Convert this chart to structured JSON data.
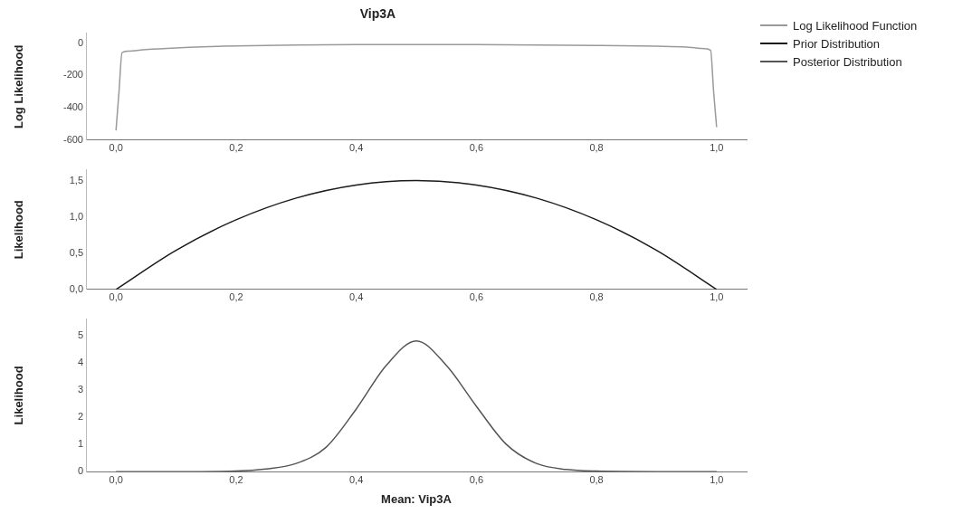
{
  "chart_data": [
    {
      "type": "line",
      "title": "Vip3A",
      "ylabel": "Log Likelihood",
      "legend": "top right",
      "grid": false,
      "x": [
        0,
        0.005,
        0.01,
        0.02,
        0.05,
        0.1,
        0.2,
        0.3,
        0.4,
        0.5,
        0.6,
        0.7,
        0.8,
        0.9,
        0.95,
        0.98,
        0.99,
        0.995,
        1.0
      ],
      "xlim": [
        -0.05,
        1.05
      ],
      "xticks": [
        {
          "value": 0,
          "label": "0,0"
        },
        {
          "value": 0.2,
          "label": "0,2"
        },
        {
          "value": 0.4,
          "label": "0,4"
        },
        {
          "value": 0.6,
          "label": "0,6"
        },
        {
          "value": 0.8,
          "label": "0,8"
        },
        {
          "value": 1,
          "label": "1,0"
        }
      ],
      "ylim": [
        -600,
        60
      ],
      "yticks": [
        -600,
        -400,
        -200,
        0
      ],
      "series": [
        {
          "name": "Log Likelihood Function",
          "color": "#9a9a9a",
          "values": [
            -540,
            -300,
            -60,
            -50,
            -40,
            -30,
            -18,
            -13,
            -10,
            -9,
            -10,
            -12,
            -15,
            -20,
            -25,
            -35,
            -45,
            -300,
            -520
          ]
        }
      ]
    },
    {
      "type": "line",
      "ylabel": "Likelihood",
      "grid": false,
      "x": [
        0,
        0.1,
        0.2,
        0.3,
        0.4,
        0.5,
        0.6,
        0.7,
        0.8,
        0.9,
        1.0
      ],
      "xlim": [
        -0.05,
        1.05
      ],
      "xticks": [
        {
          "value": 0,
          "label": "0,0"
        },
        {
          "value": 0.2,
          "label": "0,2"
        },
        {
          "value": 0.4,
          "label": "0,4"
        },
        {
          "value": 0.6,
          "label": "0,6"
        },
        {
          "value": 0.8,
          "label": "0,8"
        },
        {
          "value": 1,
          "label": "1,0"
        }
      ],
      "ylim": [
        0,
        1.65
      ],
      "yticks": [
        {
          "value": 0,
          "label": "0,0"
        },
        {
          "value": 0.5,
          "label": "0,5"
        },
        {
          "value": 1,
          "label": "1,0"
        },
        {
          "value": 1.5,
          "label": "1,5"
        }
      ],
      "series": [
        {
          "name": "Prior Distribution",
          "color": "#1a1a1a",
          "values": [
            0,
            0.54,
            0.96,
            1.26,
            1.44,
            1.5,
            1.44,
            1.26,
            0.96,
            0.54,
            0
          ]
        }
      ]
    },
    {
      "type": "line",
      "ylabel": "Likelihood",
      "xlabel": "Mean: Vip3A",
      "grid": false,
      "x": [
        0,
        0.1,
        0.2,
        0.25,
        0.3,
        0.35,
        0.4,
        0.45,
        0.5,
        0.55,
        0.6,
        0.65,
        0.7,
        0.75,
        0.8,
        0.9,
        1.0
      ],
      "xlim": [
        -0.05,
        1.05
      ],
      "xticks": [
        {
          "value": 0,
          "label": "0,0"
        },
        {
          "value": 0.2,
          "label": "0,2"
        },
        {
          "value": 0.4,
          "label": "0,4"
        },
        {
          "value": 0.6,
          "label": "0,6"
        },
        {
          "value": 0.8,
          "label": "0,8"
        },
        {
          "value": 1,
          "label": "1,0"
        }
      ],
      "ylim": [
        0,
        5.6
      ],
      "yticks": [
        0,
        1,
        2,
        3,
        4,
        5
      ],
      "series": [
        {
          "name": "Posterior Distribution",
          "color": "#555555",
          "values": [
            0,
            0,
            0.02,
            0.1,
            0.3,
            0.9,
            2.3,
            3.9,
            4.8,
            3.9,
            2.4,
            1.0,
            0.3,
            0.08,
            0.02,
            0,
            0
          ]
        }
      ]
    }
  ]
}
